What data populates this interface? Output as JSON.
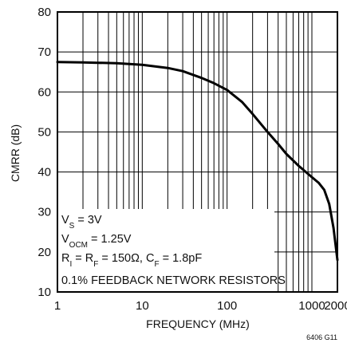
{
  "chart_data": {
    "type": "line",
    "xlabel": "FREQUENCY (MHz)",
    "ylabel": "CMRR (dB)",
    "x_scale": "log",
    "xlim": [
      1,
      2000
    ],
    "ylim": [
      10,
      80
    ],
    "x_ticks": [
      {
        "value": 1,
        "label": "1"
      },
      {
        "value": 10,
        "label": "10"
      },
      {
        "value": 100,
        "label": "100"
      },
      {
        "value": 1000,
        "label": "1000"
      },
      {
        "value": 2000,
        "label": "2000"
      }
    ],
    "y_ticks": [
      10,
      20,
      30,
      40,
      50,
      60,
      70,
      80
    ],
    "grid": true,
    "series": [
      {
        "x": [
          1,
          2,
          3,
          5,
          10,
          20,
          30,
          50,
          70,
          100,
          150,
          200,
          300,
          400,
          500,
          700,
          1000,
          1200,
          1400,
          1600,
          1800,
          2000
        ],
        "y": [
          67.5,
          67.4,
          67.3,
          67.2,
          66.8,
          66.0,
          65.2,
          63.5,
          62.2,
          60.5,
          57.5,
          54.5,
          50.0,
          47.0,
          44.5,
          41.5,
          38.7,
          37.3,
          35.5,
          32.0,
          26.0,
          18.0
        ]
      }
    ],
    "annotation_lines": [
      {
        "label": "V",
        "sub": "S",
        "rest": " = 3V"
      },
      {
        "label": "V",
        "sub": "OCM",
        "rest": " = 1.25V"
      },
      {
        "label": "R",
        "sub": "I",
        "rest": " = R",
        "sub2": "F",
        "rest2": " = 150Ω, C",
        "sub3": "F",
        "rest3": " = 1.8pF"
      },
      {
        "label": "0.1% FEEDBACK NETWORK RESISTORS"
      }
    ],
    "figure_id": "6406 G11"
  }
}
